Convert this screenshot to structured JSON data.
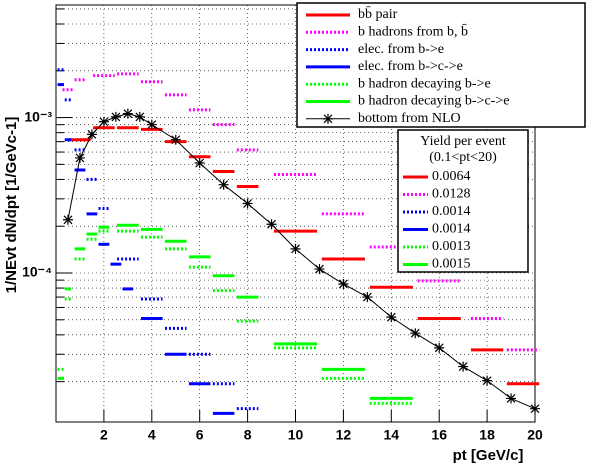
{
  "chart_data": {
    "type": "line",
    "xlabel": "pt [GeV/c]",
    "ylabel": "1/NEvt dN/dpt [1/GeVc-1]",
    "xlim": [
      0,
      20
    ],
    "xticks": [
      2,
      4,
      6,
      8,
      10,
      12,
      14,
      16,
      18,
      20
    ],
    "ylim": [
      1.1e-05,
      0.0053
    ],
    "log_y": true,
    "grid": true,
    "yticks": [
      {
        "value": 0.0001,
        "label": "10⁻⁴"
      },
      {
        "value": 0.001,
        "label": "10⁻³"
      }
    ],
    "yminorticks": [
      2e-05,
      3e-05,
      4e-05,
      5e-05,
      6e-05,
      7e-05,
      8e-05,
      9e-05,
      0.0002,
      0.0003,
      0.0004,
      0.0005,
      0.0006,
      0.0007,
      0.0008,
      0.0009,
      0.002,
      0.003,
      0.004,
      0.005
    ],
    "legend_title": "Yield per event",
    "legend_subtitle": "(0.1<pt<20)",
    "series": [
      {
        "name": "bb̄ pair",
        "color": "#ff0000",
        "style": "solid",
        "yield": 0.0064,
        "x": [
          1,
          2,
          3,
          4,
          5,
          6,
          7,
          8,
          10,
          12,
          14,
          16,
          18,
          19.5
        ],
        "values": [
          0.00072,
          0.00086,
          0.00086,
          0.00084,
          0.0007,
          0.00056,
          0.00045,
          0.00036,
          0.000186,
          0.000123,
          8.1e-05,
          5.1e-05,
          3.2e-05,
          1.94e-05
        ]
      },
      {
        "name": "b hadrons from b, b̄",
        "color": "#ff00ff",
        "style": "dotted",
        "yield": 0.0128,
        "x": [
          0.5,
          1,
          2,
          3,
          4,
          5,
          6,
          7,
          8,
          10,
          12,
          14,
          16,
          18,
          19.5
        ],
        "values": [
          0.00151,
          0.00175,
          0.00186,
          0.00191,
          0.0017,
          0.0014,
          0.00112,
          0.0009,
          0.00062,
          0.00043,
          0.00024,
          0.000147,
          8.9e-05,
          5.1e-05,
          3.2e-05
        ]
      },
      {
        "name": "elec. from b->e",
        "color": "#0000ff",
        "style": "dotted",
        "yield": 0.0014,
        "x": [
          0.2,
          0.5,
          1,
          1.5,
          2,
          3,
          4,
          5,
          6,
          7,
          8
        ],
        "values": [
          0.00203,
          0.0013,
          0.00062,
          0.0004,
          0.00026,
          0.000123,
          6.8e-05,
          4.4e-05,
          3e-05,
          1.94e-05,
          1.34e-05
        ]
      },
      {
        "name": "elec. from b->c->e",
        "color": "#0000ff",
        "style": "solid",
        "yield": 0.0014,
        "x": [
          0.2,
          0.5,
          1,
          1.5,
          2,
          2.5,
          3,
          4,
          5,
          6,
          7
        ],
        "values": [
          0.00163,
          0.00072,
          0.00046,
          0.00024,
          0.000153,
          0.000114,
          7.9e-05,
          5.1e-05,
          3e-05,
          1.94e-05,
          1.25e-05
        ]
      },
      {
        "name": "b hadron decaying b->e",
        "color": "#00ff00",
        "style": "dotted",
        "yield": 0.0013,
        "x": [
          0.2,
          0.5,
          1,
          1.5,
          2,
          3,
          4,
          5,
          6,
          7,
          8,
          10,
          12,
          14
        ],
        "values": [
          2.4e-05,
          6.8e-05,
          0.000123,
          0.000165,
          0.000186,
          0.000186,
          0.00017,
          0.000143,
          0.000109,
          7.7e-05,
          4.9e-05,
          3.3e-05,
          2.1e-05,
          1.45e-05
        ]
      },
      {
        "name": "b hadron decaying b->c->e",
        "color": "#00ff00",
        "style": "solid",
        "yield": 0.0015,
        "x": [
          0.2,
          0.5,
          1,
          1.5,
          2,
          3,
          4,
          5,
          6,
          7,
          8,
          10,
          12,
          14
        ],
        "values": [
          2.1e-05,
          7.9e-05,
          0.000143,
          0.000178,
          0.000197,
          0.000203,
          0.000191,
          0.00016,
          0.000127,
          9.6e-05,
          7e-05,
          3.5e-05,
          2.4e-05,
          1.56e-05
        ]
      },
      {
        "name": "bottom from NLO",
        "color": "#000000",
        "style": "star",
        "x": [
          0.5,
          1,
          1.5,
          2,
          2.5,
          3,
          3.5,
          4,
          5,
          6,
          7,
          8,
          9,
          10,
          11,
          12,
          13,
          14,
          15,
          16,
          17,
          18,
          19,
          20
        ],
        "values": [
          0.00022,
          0.00055,
          0.00078,
          0.00094,
          0.00101,
          0.00106,
          0.00101,
          0.0009,
          0.00072,
          0.00051,
          0.00037,
          0.00028,
          0.000206,
          0.000143,
          0.000106,
          8.5e-05,
          7e-05,
          5.2e-05,
          4.1e-05,
          3.3e-05,
          2.5e-05,
          2.03e-05,
          1.56e-05,
          1.34e-05
        ]
      }
    ]
  }
}
